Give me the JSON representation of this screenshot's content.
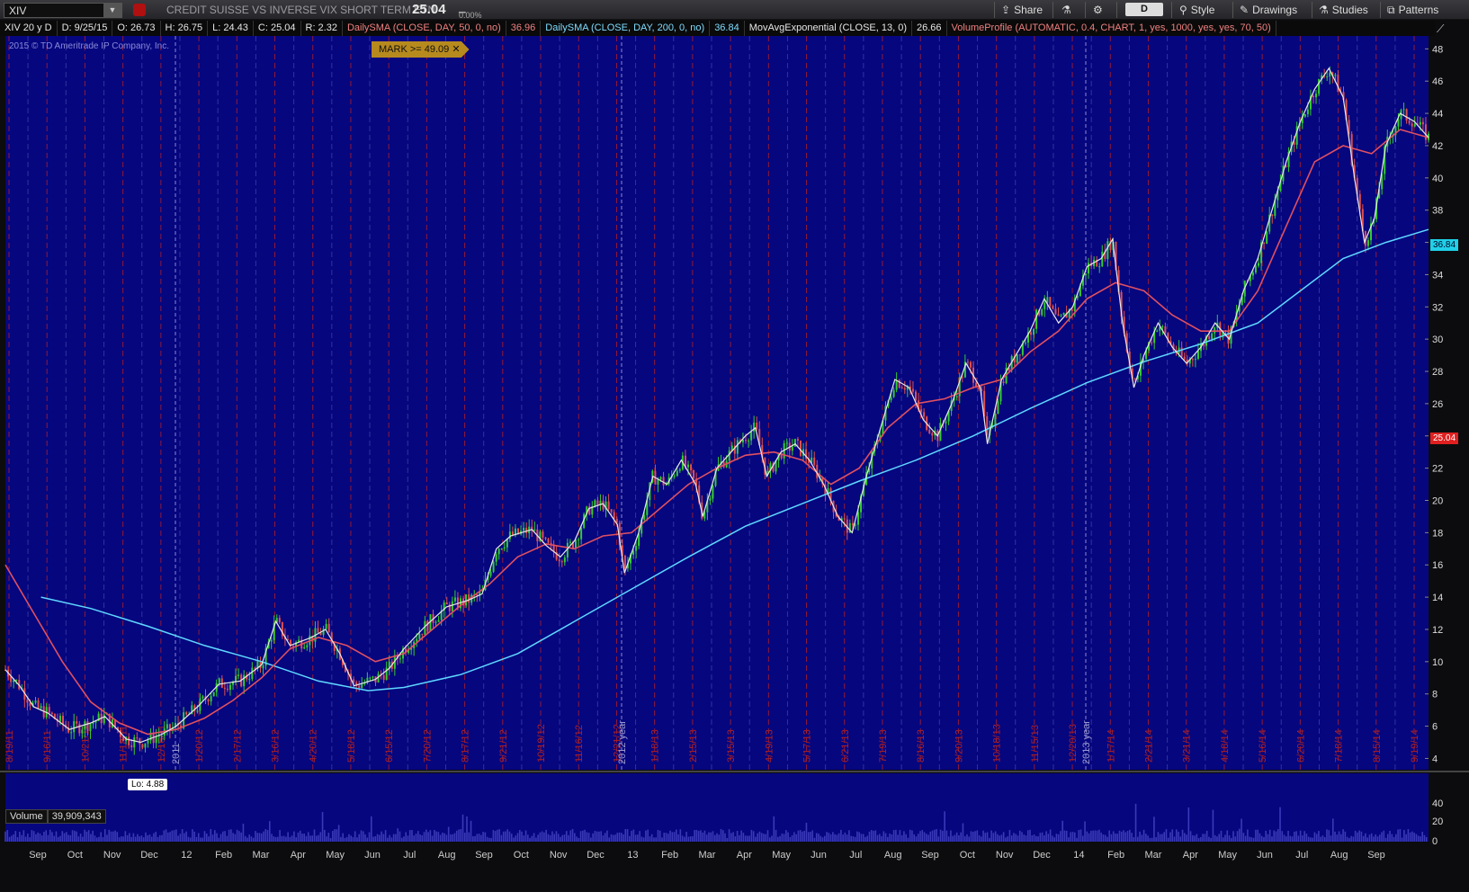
{
  "toolbar": {
    "symbol": "XIV",
    "description": "CREDIT SUISSE VS INVERSE VIX SHORT TERM ETN",
    "last": "25.04",
    "net_pct": "0.00%",
    "share": "Share",
    "period": "D",
    "style": "Style",
    "drawings": "Drawings",
    "studies": "Studies",
    "patterns": "Patterns"
  },
  "legend": {
    "title": "XIV 20 y D",
    "date": "D: 9/25/15",
    "open": "O: 26.73",
    "high": "H: 26.75",
    "low": "L: 24.43",
    "close": "C: 25.04",
    "range": "R: 2.32",
    "sma50": "DailySMA (CLOSE, DAY, 50, 0, no)",
    "sma50_val": "36.96",
    "sma200": "DailySMA (CLOSE, DAY, 200, 0, no)",
    "sma200_val": "36.84",
    "ema13": "MovAvgExponential (CLOSE, 13, 0)",
    "ema13_val": "26.66",
    "vp": "VolumeProfile (AUTOMATIC, 0.4, CHART, 1, yes, 1000, yes, yes, 70, 50)"
  },
  "chart": {
    "copyright": "2015 © TD Ameritrade IP Company, Inc.",
    "mark": "MARK >= 49.09 ✕",
    "lo_label": "Lo: 4.88",
    "sma_tag": "36.84",
    "last_tag": "25.04",
    "volume_title": "Volume",
    "volume_value": "39,909,343"
  },
  "chart_data": {
    "type": "line",
    "price_axis": [
      48,
      46,
      44,
      42,
      40,
      38,
      36,
      34,
      32,
      30,
      28,
      26,
      24,
      22,
      20,
      18,
      16,
      14,
      12,
      10,
      8,
      6,
      4
    ],
    "ylim": [
      3.3,
      48.8
    ],
    "volume_axis": [
      "40",
      "20",
      "0"
    ],
    "date_labels": [
      "8/19/11",
      "9/16/11",
      "10/21/11",
      "11/18/11",
      "12/16/11",
      "1/20/12",
      "2/17/12",
      "3/16/12",
      "4/20/12",
      "5/18/12",
      "6/15/12",
      "7/20/12",
      "8/17/12",
      "9/21/12",
      "10/19/12",
      "11/16/12",
      "12/21/12",
      "1/18/13",
      "2/15/13",
      "3/15/13",
      "4/19/13",
      "5/17/13",
      "6/21/13",
      "7/19/13",
      "8/16/13",
      "9/20/13",
      "10/18/13",
      "11/15/13",
      "12/20/13",
      "1/17/14",
      "2/21/14",
      "3/21/14",
      "4/18/14",
      "5/16/14",
      "6/20/14",
      "7/18/14",
      "8/15/14",
      "9/19/14"
    ],
    "year_markers": [
      "2011",
      "2012 year",
      "2013 year"
    ],
    "month_axis": [
      "Sep",
      "Oct",
      "Nov",
      "Dec",
      "12",
      "Feb",
      "Mar",
      "Apr",
      "May",
      "Jun",
      "Jul",
      "Aug",
      "Sep",
      "Oct",
      "Nov",
      "Dec",
      "13",
      "Feb",
      "Mar",
      "Apr",
      "May",
      "Jun",
      "Jul",
      "Aug",
      "Sep",
      "Oct",
      "Nov",
      "Dec",
      "14",
      "Feb",
      "Mar",
      "Apr",
      "May",
      "Jun",
      "Jul",
      "Aug",
      "Sep"
    ],
    "price_path": [
      [
        0,
        9.5
      ],
      [
        0.01,
        8.5
      ],
      [
        0.02,
        7.2
      ],
      [
        0.03,
        6.8
      ],
      [
        0.045,
        5.8
      ],
      [
        0.06,
        6.2
      ],
      [
        0.07,
        6.6
      ],
      [
        0.085,
        5.2
      ],
      [
        0.095,
        5.0
      ],
      [
        0.11,
        5.5
      ],
      [
        0.12,
        6.0
      ],
      [
        0.135,
        7.2
      ],
      [
        0.15,
        8.6
      ],
      [
        0.165,
        8.8
      ],
      [
        0.18,
        9.8
      ],
      [
        0.19,
        12.5
      ],
      [
        0.2,
        11.0
      ],
      [
        0.215,
        11.5
      ],
      [
        0.225,
        12.0
      ],
      [
        0.235,
        10.5
      ],
      [
        0.245,
        8.5
      ],
      [
        0.26,
        8.9
      ],
      [
        0.27,
        9.6
      ],
      [
        0.28,
        10.8
      ],
      [
        0.295,
        12.2
      ],
      [
        0.31,
        13.4
      ],
      [
        0.325,
        13.8
      ],
      [
        0.335,
        14.2
      ],
      [
        0.345,
        17.0
      ],
      [
        0.355,
        17.8
      ],
      [
        0.37,
        18.2
      ],
      [
        0.38,
        17.2
      ],
      [
        0.39,
        16.5
      ],
      [
        0.4,
        17.5
      ],
      [
        0.41,
        19.5
      ],
      [
        0.42,
        19.8
      ],
      [
        0.43,
        18.5
      ],
      [
        0.435,
        15.5
      ],
      [
        0.445,
        18.0
      ],
      [
        0.455,
        21.5
      ],
      [
        0.465,
        21.0
      ],
      [
        0.475,
        22.5
      ],
      [
        0.485,
        21.0
      ],
      [
        0.49,
        19.0
      ],
      [
        0.5,
        22.0
      ],
      [
        0.51,
        23.0
      ],
      [
        0.52,
        24.0
      ],
      [
        0.527,
        24.5
      ],
      [
        0.535,
        21.5
      ],
      [
        0.545,
        23.0
      ],
      [
        0.555,
        23.5
      ],
      [
        0.565,
        22.5
      ],
      [
        0.575,
        21.0
      ],
      [
        0.585,
        19.0
      ],
      [
        0.595,
        18.0
      ],
      [
        0.605,
        21.5
      ],
      [
        0.615,
        24.5
      ],
      [
        0.625,
        27.5
      ],
      [
        0.635,
        27.0
      ],
      [
        0.645,
        25.0
      ],
      [
        0.655,
        24.0
      ],
      [
        0.665,
        26.0
      ],
      [
        0.675,
        28.5
      ],
      [
        0.685,
        27.0
      ],
      [
        0.69,
        23.5
      ],
      [
        0.7,
        27.5
      ],
      [
        0.71,
        29.0
      ],
      [
        0.72,
        30.5
      ],
      [
        0.73,
        32.5
      ],
      [
        0.74,
        31.0
      ],
      [
        0.75,
        32.0
      ],
      [
        0.76,
        34.5
      ],
      [
        0.77,
        35.0
      ],
      [
        0.778,
        36.2
      ],
      [
        0.785,
        31.0
      ],
      [
        0.793,
        27.0
      ],
      [
        0.8,
        29.0
      ],
      [
        0.81,
        31.0
      ],
      [
        0.82,
        29.5
      ],
      [
        0.83,
        28.5
      ],
      [
        0.84,
        29.5
      ],
      [
        0.85,
        31.0
      ],
      [
        0.86,
        30.0
      ],
      [
        0.87,
        33.0
      ],
      [
        0.88,
        35.0
      ],
      [
        0.89,
        38.0
      ],
      [
        0.9,
        41.0
      ],
      [
        0.91,
        43.5
      ],
      [
        0.92,
        45.5
      ],
      [
        0.93,
        46.8
      ],
      [
        0.94,
        45.0
      ],
      [
        0.948,
        40.0
      ],
      [
        0.955,
        36.0
      ],
      [
        0.962,
        37.5
      ],
      [
        0.97,
        42.0
      ],
      [
        0.98,
        44.0
      ],
      [
        0.99,
        43.5
      ],
      [
        1.0,
        42.5
      ]
    ],
    "sma200_path": [
      [
        0.025,
        14.0
      ],
      [
        0.06,
        13.3
      ],
      [
        0.1,
        12.2
      ],
      [
        0.14,
        11.0
      ],
      [
        0.18,
        10.0
      ],
      [
        0.22,
        8.8
      ],
      [
        0.255,
        8.2
      ],
      [
        0.28,
        8.4
      ],
      [
        0.32,
        9.2
      ],
      [
        0.36,
        10.5
      ],
      [
        0.4,
        12.5
      ],
      [
        0.44,
        14.5
      ],
      [
        0.48,
        16.5
      ],
      [
        0.52,
        18.4
      ],
      [
        0.56,
        19.8
      ],
      [
        0.6,
        21.2
      ],
      [
        0.64,
        22.5
      ],
      [
        0.68,
        24.0
      ],
      [
        0.72,
        25.7
      ],
      [
        0.76,
        27.3
      ],
      [
        0.8,
        28.6
      ],
      [
        0.84,
        29.7
      ],
      [
        0.88,
        31.0
      ],
      [
        0.91,
        33.0
      ],
      [
        0.94,
        35.0
      ],
      [
        0.97,
        36.0
      ],
      [
        1.0,
        36.8
      ]
    ],
    "sma50_path": [
      [
        0.0,
        16.0
      ],
      [
        0.02,
        13.0
      ],
      [
        0.04,
        10.0
      ],
      [
        0.06,
        7.5
      ],
      [
        0.08,
        6.2
      ],
      [
        0.1,
        5.5
      ],
      [
        0.12,
        5.8
      ],
      [
        0.14,
        6.5
      ],
      [
        0.16,
        7.6
      ],
      [
        0.18,
        9.0
      ],
      [
        0.2,
        10.8
      ],
      [
        0.22,
        11.5
      ],
      [
        0.24,
        11.0
      ],
      [
        0.26,
        10.0
      ],
      [
        0.28,
        10.5
      ],
      [
        0.3,
        12.0
      ],
      [
        0.32,
        13.5
      ],
      [
        0.34,
        14.8
      ],
      [
        0.36,
        16.5
      ],
      [
        0.38,
        17.3
      ],
      [
        0.4,
        17.0
      ],
      [
        0.42,
        17.8
      ],
      [
        0.44,
        18.0
      ],
      [
        0.46,
        19.5
      ],
      [
        0.48,
        21.0
      ],
      [
        0.5,
        22.0
      ],
      [
        0.52,
        22.8
      ],
      [
        0.54,
        23.0
      ],
      [
        0.56,
        22.5
      ],
      [
        0.58,
        21.0
      ],
      [
        0.6,
        22.0
      ],
      [
        0.62,
        24.5
      ],
      [
        0.64,
        26.0
      ],
      [
        0.66,
        26.3
      ],
      [
        0.68,
        27.0
      ],
      [
        0.7,
        27.5
      ],
      [
        0.72,
        29.2
      ],
      [
        0.74,
        30.5
      ],
      [
        0.76,
        32.5
      ],
      [
        0.78,
        33.5
      ],
      [
        0.8,
        33.0
      ],
      [
        0.82,
        31.5
      ],
      [
        0.84,
        30.5
      ],
      [
        0.86,
        30.5
      ],
      [
        0.88,
        33.0
      ],
      [
        0.9,
        37.0
      ],
      [
        0.92,
        41.0
      ],
      [
        0.94,
        42.0
      ],
      [
        0.96,
        41.5
      ],
      [
        0.98,
        43.0
      ],
      [
        1.0,
        42.5
      ]
    ]
  }
}
